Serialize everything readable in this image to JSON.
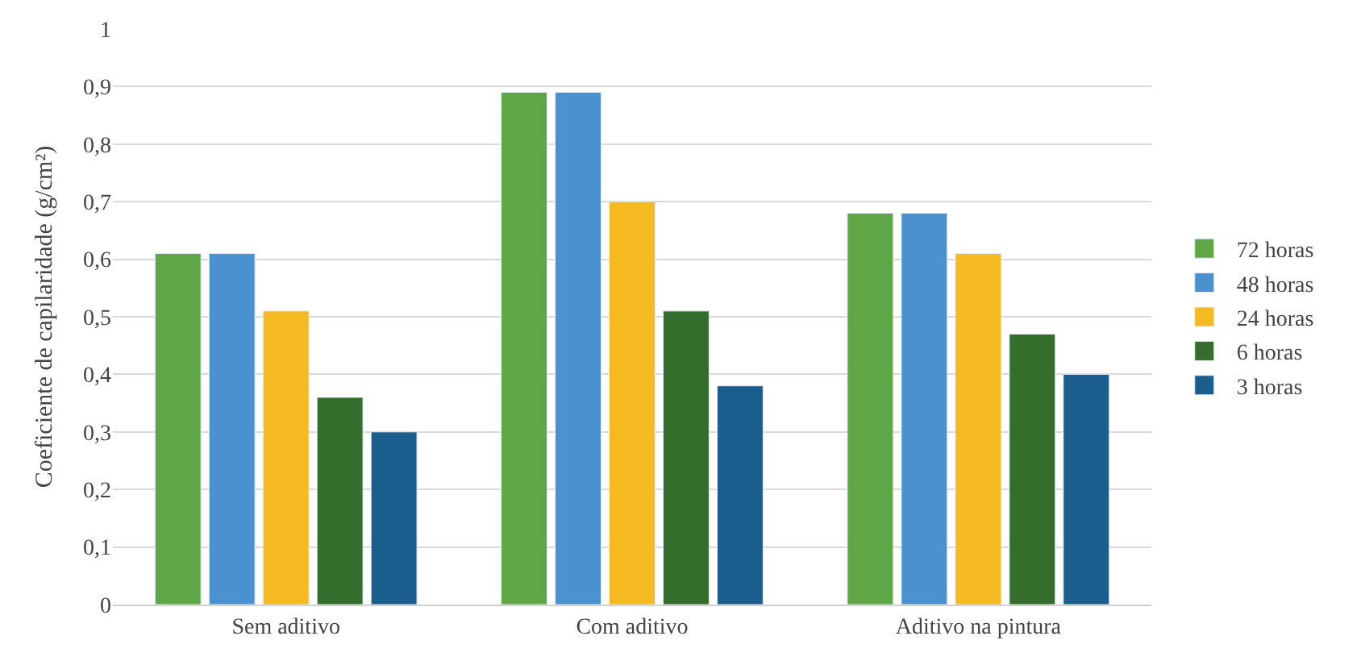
{
  "chart_data": {
    "type": "bar",
    "ylabel": "Coeficiente de capilaridade (g/cm²)",
    "categories": [
      "Sem aditivo",
      "Com aditivo",
      "Aditivo na pintura"
    ],
    "series": [
      {
        "name": "72 horas",
        "color": "#5ea646",
        "values": [
          0.61,
          0.89,
          0.68
        ]
      },
      {
        "name": "48 horas",
        "color": "#4a92cf",
        "values": [
          0.61,
          0.89,
          0.68
        ]
      },
      {
        "name": "24 horas",
        "color": "#f5b921",
        "values": [
          0.51,
          0.7,
          0.61
        ]
      },
      {
        "name": "6 horas",
        "color": "#356d2c",
        "values": [
          0.36,
          0.51,
          0.47
        ]
      },
      {
        "name": "3 horas",
        "color": "#1b5e8e",
        "values": [
          0.3,
          0.38,
          0.4
        ]
      }
    ],
    "ylim": [
      0,
      1
    ],
    "yticks": [
      0,
      {
        "value": 0.1,
        "label": "0,1"
      },
      {
        "value": 0.2,
        "label": "0,2"
      },
      {
        "value": 0.3,
        "label": "0,3"
      },
      {
        "value": 0.4,
        "label": "0,4"
      },
      {
        "value": 0.5,
        "label": "0,5"
      },
      {
        "value": 0.6,
        "label": "0,6"
      },
      {
        "value": 0.7,
        "label": "0,7"
      },
      {
        "value": 0.8,
        "label": "0,8"
      },
      {
        "value": 0.9,
        "label": "0,9"
      },
      1
    ],
    "grid": "y",
    "legend": "right"
  }
}
